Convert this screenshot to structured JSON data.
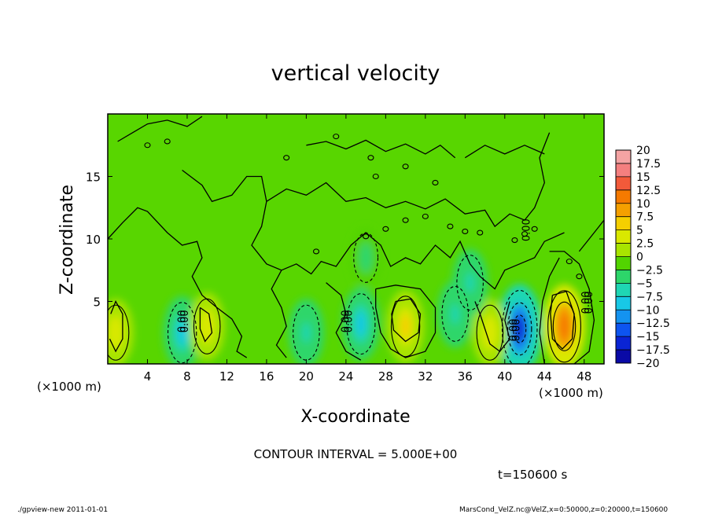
{
  "chart_data": {
    "type": "heatmap",
    "title": "vertical velocity",
    "xlabel": "X-coordinate",
    "ylabel": "Z-coordinate",
    "x_unit_left": "(×1000 m)",
    "x_unit_right": "(×1000 m)",
    "xlim": [
      0,
      50
    ],
    "ylim": [
      0,
      20
    ],
    "x_ticks": [
      "4",
      "8",
      "12",
      "16",
      "20",
      "24",
      "28",
      "32",
      "36",
      "40",
      "44",
      "48"
    ],
    "y_ticks": [
      "5",
      "10",
      "15"
    ],
    "colorbar": {
      "levels": [
        "20",
        "17.5",
        "15",
        "12.5",
        "10",
        "7.5",
        "5",
        "2.5",
        "0",
        "−2.5",
        "−5",
        "−7.5",
        "−10",
        "−12.5",
        "−15",
        "−17.5",
        "−20"
      ],
      "colors": [
        "#f4a3a3",
        "#f47f7f",
        "#f25a3a",
        "#f57a00",
        "#f5a000",
        "#f5cf00",
        "#d9e800",
        "#a8e400",
        "#52d400",
        "#2dd66a",
        "#1fd6b4",
        "#18c8e6",
        "#1493f0",
        "#0d55f0",
        "#0a24d4",
        "#0a0aa6",
        "#5a0aa0"
      ]
    },
    "contour_interval": "CONTOUR INTERVAL = 5.000E+00",
    "extrema": [
      {
        "x": 41.5,
        "z": 2.8,
        "value": -15
      },
      {
        "x": 46.0,
        "z": 3.0,
        "value": 12.5
      },
      {
        "x": 30.0,
        "z": 3.0,
        "value": 7.5
      },
      {
        "x": 7.5,
        "z": 2.5,
        "value": -7.5
      },
      {
        "x": 25.5,
        "z": 3.2,
        "value": -7.5
      },
      {
        "x": 10.0,
        "z": 3.0,
        "value": 5
      },
      {
        "x": 38.5,
        "z": 2.5,
        "value": 5
      },
      {
        "x": 0.8,
        "z": 2.5,
        "value": 5
      },
      {
        "x": 20.0,
        "z": 2.5,
        "value": -5
      },
      {
        "x": 35.0,
        "z": 4.0,
        "value": -5
      },
      {
        "x": 26.0,
        "z": 8.5,
        "value": -2.5
      },
      {
        "x": 36.5,
        "z": 6.5,
        "value": -5
      }
    ]
  },
  "time_label": "t=150600 s",
  "footer_left": "./gpview-new   2011-01-01",
  "footer_right": "MarsCond_VelZ.nc@VelZ,x=0:50000,z=0:20000,t=150600",
  "contour_labels": [
    "0.00",
    "0.00",
    "0.00",
    "0.00",
    "0.00",
    "0.00",
    "0.00",
    "0.00",
    "0.00"
  ]
}
